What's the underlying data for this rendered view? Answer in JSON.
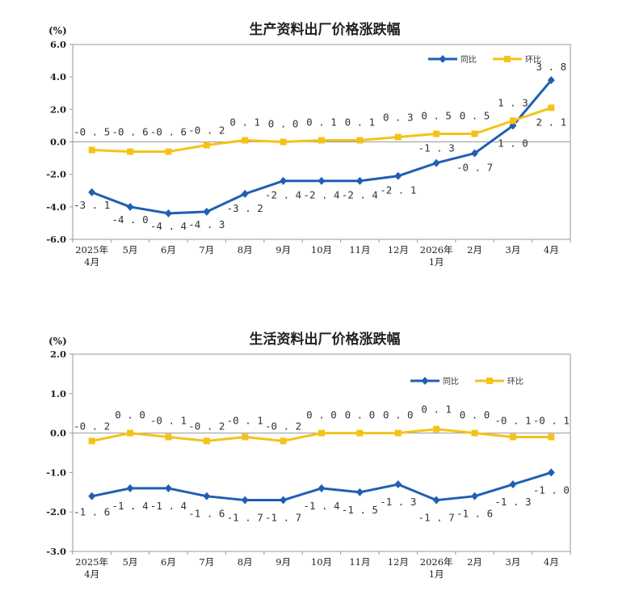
{
  "chart_data": [
    {
      "type": "line",
      "title": "生产资料出厂价格涨跌幅",
      "unit": "(%)",
      "x": [
        "2025年\n4月",
        "5月",
        "6月",
        "7月",
        "8月",
        "9月",
        "10月",
        "11月",
        "12月",
        "2026年\n1月",
        "2月",
        "3月",
        "4月"
      ],
      "ylim": [
        -6,
        6
      ],
      "yticks": [
        "6.0",
        "4.0",
        "2.0",
        "0.0",
        "-2.0",
        "-4.0",
        "-6.0"
      ],
      "ytick_values": [
        6,
        4,
        2,
        0,
        -2,
        -4,
        -6
      ],
      "legend_position": "top-right",
      "series": [
        {
          "name": "同比",
          "color": "#1f5fb4",
          "marker": "diamond",
          "values": [
            -3.1,
            -4.0,
            -4.4,
            -4.3,
            -3.2,
            -2.4,
            -2.4,
            -2.4,
            -2.1,
            -1.3,
            -0.7,
            1.0,
            3.8
          ],
          "labels": [
            "-3.1",
            "-4.0",
            "-4.4",
            "-4.3",
            "-3.2",
            "-2.4",
            "-2.4",
            "-2.4",
            "-2.1",
            "-1.3",
            "-0.7",
            "1.0",
            "3.8"
          ]
        },
        {
          "name": "环比",
          "color": "#f5c218",
          "marker": "square",
          "values": [
            -0.5,
            -0.6,
            -0.6,
            -0.2,
            0.1,
            0.0,
            0.1,
            0.1,
            0.3,
            0.5,
            0.5,
            1.3,
            2.1
          ],
          "labels": [
            "-0.5",
            "-0.6",
            "-0.6",
            "-0.2",
            "0.1",
            "0.0",
            "0.1",
            "0.1",
            "0.3",
            "0.5",
            "0.5",
            "1.3",
            "2.1"
          ]
        }
      ]
    },
    {
      "type": "line",
      "title": "生活资料出厂价格涨跌幅",
      "unit": "(%)",
      "x": [
        "2025年\n4月",
        "5月",
        "6月",
        "7月",
        "8月",
        "9月",
        "10月",
        "11月",
        "12月",
        "2026年\n1月",
        "2月",
        "3月",
        "4月"
      ],
      "ylim": [
        -3,
        2
      ],
      "yticks": [
        "2.0",
        "1.0",
        "0.0",
        "-1.0",
        "-2.0",
        "-3.0"
      ],
      "ytick_values": [
        2,
        1,
        0,
        -1,
        -2,
        -3
      ],
      "legend_position": "top-right",
      "series": [
        {
          "name": "同比",
          "color": "#1f5fb4",
          "marker": "diamond",
          "values": [
            -1.6,
            -1.4,
            -1.4,
            -1.6,
            -1.7,
            -1.7,
            -1.4,
            -1.5,
            -1.3,
            -1.7,
            -1.6,
            -1.3,
            -1.0
          ],
          "labels": [
            "-1.6",
            "-1.4",
            "-1.4",
            "-1.6",
            "-1.7",
            "-1.7",
            "-1.4",
            "-1.5",
            "-1.3",
            "-1.7",
            "-1.6",
            "-1.3",
            "-1.0"
          ]
        },
        {
          "name": "环比",
          "color": "#f5c218",
          "marker": "square",
          "values": [
            -0.2,
            0.0,
            -0.1,
            -0.2,
            -0.1,
            -0.2,
            0.0,
            0.0,
            0.0,
            0.1,
            0.0,
            -0.1,
            -0.1
          ],
          "labels": [
            "-0.2",
            "0.0",
            "-0.1",
            "-0.2",
            "-0.1",
            "-0.2",
            "0.0",
            "0.0",
            "0.0",
            "0.1",
            "0.0",
            "-0.1",
            "-0.1"
          ]
        }
      ]
    }
  ]
}
